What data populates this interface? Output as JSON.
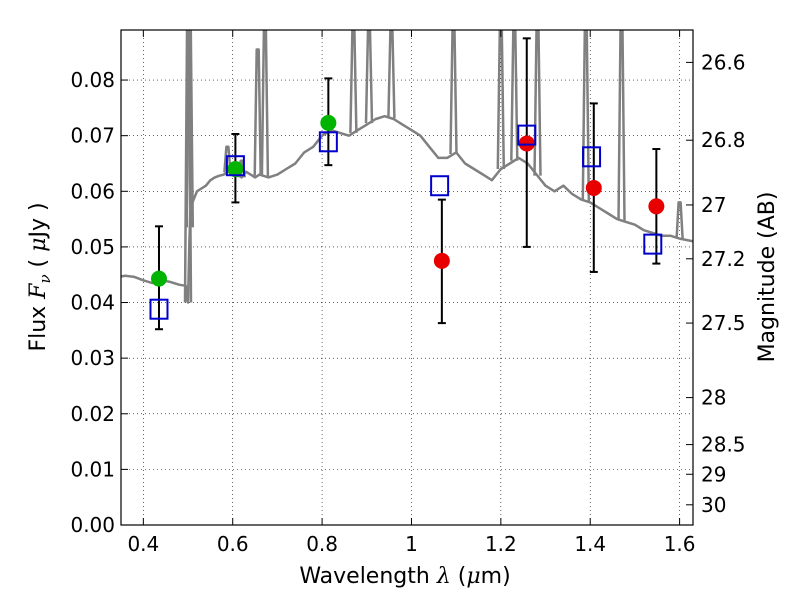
{
  "chart_data": {
    "type": "scatter",
    "title": "",
    "xlabel": {
      "prefix": "Wavelength ",
      "symbol": "λ",
      "unit_open": " (",
      "unit_mu": "μ",
      "unit_rest": "m)"
    },
    "ylabel": {
      "prefix": "Flux ",
      "symbol": "F",
      "subscript": "ν",
      "unit_open": " ( ",
      "unit_mu": "μ",
      "unit_rest": "Jy )"
    },
    "ylabel_right": "Magnitude (AB)",
    "xlim": [
      0.35,
      1.63
    ],
    "ylim": [
      0.0,
      0.089
    ],
    "grid": true,
    "x_ticks": [
      {
        "v": 0.4,
        "label": "0.4"
      },
      {
        "v": 0.6,
        "label": "0.6"
      },
      {
        "v": 0.8,
        "label": "0.8"
      },
      {
        "v": 1.0,
        "label": "1"
      },
      {
        "v": 1.2,
        "label": "1.2"
      },
      {
        "v": 1.4,
        "label": "1.4"
      },
      {
        "v": 1.6,
        "label": "1.6"
      }
    ],
    "y_ticks": [
      {
        "v": 0.0,
        "label": "0.00"
      },
      {
        "v": 0.01,
        "label": "0.01"
      },
      {
        "v": 0.02,
        "label": "0.02"
      },
      {
        "v": 0.03,
        "label": "0.03"
      },
      {
        "v": 0.04,
        "label": "0.04"
      },
      {
        "v": 0.05,
        "label": "0.05"
      },
      {
        "v": 0.06,
        "label": "0.06"
      },
      {
        "v": 0.07,
        "label": "0.07"
      },
      {
        "v": 0.08,
        "label": "0.08"
      }
    ],
    "magnitude_ticks": [
      {
        "mag": 26.6,
        "label": "26.6"
      },
      {
        "mag": 26.8,
        "label": "26.8"
      },
      {
        "mag": 27.0,
        "label": "27"
      },
      {
        "mag": 27.2,
        "label": "27.2"
      },
      {
        "mag": 27.5,
        "label": "27.5"
      },
      {
        "mag": 28.0,
        "label": "28"
      },
      {
        "mag": 28.5,
        "label": "28.5"
      },
      {
        "mag": 29.0,
        "label": "29"
      },
      {
        "mag": 30.0,
        "label": "30"
      }
    ],
    "series": [
      {
        "name": "observed optical (green)",
        "color": "#00b400",
        "marker": "circle",
        "points": [
          {
            "x": 0.435,
            "y": 0.0443,
            "ylo": 0.0352,
            "yhi": 0.0537
          },
          {
            "x": 0.606,
            "y": 0.064,
            "ylo": 0.058,
            "yhi": 0.0703
          },
          {
            "x": 0.814,
            "y": 0.0723,
            "ylo": 0.0647,
            "yhi": 0.0803
          }
        ]
      },
      {
        "name": "observed near-IR (red)",
        "color": "#e80000",
        "marker": "circle",
        "points": [
          {
            "x": 1.068,
            "y": 0.0475,
            "ylo": 0.0363,
            "yhi": 0.0585
          },
          {
            "x": 1.258,
            "y": 0.0686,
            "ylo": 0.05,
            "yhi": 0.0875
          },
          {
            "x": 1.408,
            "y": 0.0606,
            "ylo": 0.0455,
            "yhi": 0.0758
          },
          {
            "x": 1.548,
            "y": 0.0573,
            "ylo": 0.047,
            "yhi": 0.0676
          }
        ]
      },
      {
        "name": "model photometry (blue squares)",
        "color": "#0000cc",
        "marker": "square",
        "points": [
          {
            "x": 0.435,
            "y": 0.0388
          },
          {
            "x": 0.606,
            "y": 0.0646
          },
          {
            "x": 0.814,
            "y": 0.0689
          },
          {
            "x": 1.063,
            "y": 0.061
          },
          {
            "x": 1.258,
            "y": 0.0701
          },
          {
            "x": 1.403,
            "y": 0.0662
          },
          {
            "x": 1.54,
            "y": 0.0505
          }
        ]
      }
    ],
    "model_spectrum": {
      "color": "#808080",
      "x": [
        0.35,
        0.36,
        0.38,
        0.4,
        0.42,
        0.44,
        0.46,
        0.48,
        0.495,
        0.498,
        0.5,
        0.503,
        0.505,
        0.507,
        0.51,
        0.515,
        0.52,
        0.53,
        0.54,
        0.55,
        0.56,
        0.57,
        0.58,
        0.6,
        0.62,
        0.63,
        0.64,
        0.65,
        0.66,
        0.68,
        0.7,
        0.72,
        0.74,
        0.76,
        0.78,
        0.8,
        0.82,
        0.84,
        0.86,
        0.88,
        0.9,
        0.92,
        0.94,
        0.96,
        0.98,
        1.0,
        1.02,
        1.04,
        1.06,
        1.08,
        1.1,
        1.12,
        1.14,
        1.16,
        1.18,
        1.2,
        1.22,
        1.24,
        1.26,
        1.28,
        1.3,
        1.32,
        1.34,
        1.36,
        1.38,
        1.4,
        1.42,
        1.44,
        1.46,
        1.48,
        1.5,
        1.52,
        1.54,
        1.56,
        1.58,
        1.6,
        1.63
      ],
      "y": [
        0.0447,
        0.0448,
        0.0446,
        0.044,
        0.0435,
        0.044,
        0.0437,
        0.0432,
        0.043,
        0.0405,
        0.04,
        0.051,
        0.056,
        0.057,
        0.058,
        0.059,
        0.06,
        0.0605,
        0.061,
        0.062,
        0.0625,
        0.0628,
        0.063,
        0.064,
        0.0625,
        0.0635,
        0.063,
        0.0625,
        0.063,
        0.0625,
        0.063,
        0.064,
        0.065,
        0.067,
        0.068,
        0.07,
        0.071,
        0.0705,
        0.07,
        0.071,
        0.072,
        0.073,
        0.0735,
        0.073,
        0.072,
        0.071,
        0.07,
        0.068,
        0.066,
        0.066,
        0.067,
        0.065,
        0.064,
        0.063,
        0.062,
        0.064,
        0.065,
        0.066,
        0.065,
        0.063,
        0.061,
        0.06,
        0.061,
        0.0595,
        0.0585,
        0.058,
        0.057,
        0.056,
        0.055,
        0.0545,
        0.054,
        0.053,
        0.0525,
        0.052,
        0.052,
        0.0515,
        0.051
      ],
      "emission_lines": [
        {
          "x": 0.5,
          "peak": 0.089
        },
        {
          "x": 0.504,
          "peak": 0.089
        },
        {
          "x": 0.588,
          "peak": 0.068
        },
        {
          "x": 0.62,
          "peak": 0.0655
        },
        {
          "x": 0.656,
          "peak": 0.0855
        },
        {
          "x": 0.672,
          "peak": 0.089
        },
        {
          "x": 0.87,
          "peak": 0.089
        },
        {
          "x": 0.905,
          "peak": 0.089
        },
        {
          "x": 0.955,
          "peak": 0.089
        },
        {
          "x": 1.094,
          "peak": 0.089
        },
        {
          "x": 1.2,
          "peak": 0.089
        },
        {
          "x": 1.23,
          "peak": 0.089
        },
        {
          "x": 1.282,
          "peak": 0.089
        },
        {
          "x": 1.39,
          "peak": 0.089
        },
        {
          "x": 1.47,
          "peak": 0.089
        },
        {
          "x": 1.6,
          "peak": 0.058
        }
      ]
    }
  }
}
